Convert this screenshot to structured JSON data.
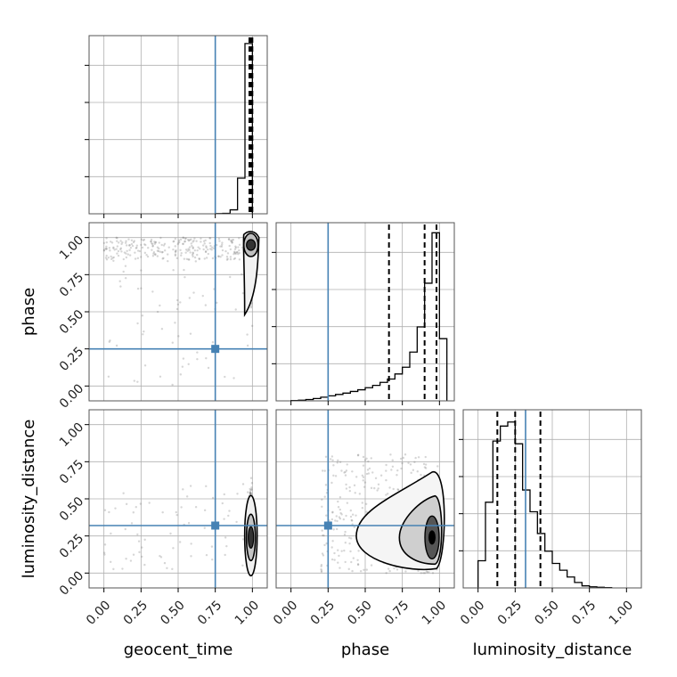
{
  "chart_data": {
    "type": "corner",
    "colors": {
      "truth": "#4682b4",
      "contour": "#000000",
      "points": "#6b6b6b",
      "grid": "#b0b0b0"
    },
    "parameters": [
      "geocent_time",
      "phase",
      "luminosity_distance"
    ],
    "axis_labels": {
      "x": [
        "geocent_time",
        "phase",
        "luminosity_distance"
      ],
      "y": [
        "phase",
        "luminosity_distance"
      ]
    },
    "range": [
      -0.1,
      1.1
    ],
    "ticks": [
      0.0,
      0.25,
      0.5,
      0.75,
      1.0
    ],
    "tick_labels": [
      "0.00",
      "0.25",
      "0.50",
      "0.75",
      "1.00"
    ],
    "truths": [
      0.75,
      0.25,
      0.32
    ],
    "grid": true,
    "histograms": [
      {
        "parameter": "geocent_time",
        "bin_edges": [
          0.75,
          0.8,
          0.85,
          0.9,
          0.95,
          1.0
        ],
        "counts": [
          1,
          2,
          20,
          180,
          860
        ],
        "ymax": 900,
        "quantiles": [
          0.98,
          0.99,
          1.0
        ]
      },
      {
        "parameter": "phase",
        "bin_edges": [
          0.0,
          0.05,
          0.1,
          0.15,
          0.2,
          0.25,
          0.3,
          0.35,
          0.4,
          0.45,
          0.5,
          0.55,
          0.6,
          0.65,
          0.7,
          0.75,
          0.8,
          0.85,
          0.9,
          0.95,
          1.0,
          1.05
        ],
        "counts": [
          2,
          4,
          8,
          14,
          22,
          30,
          38,
          46,
          56,
          66,
          78,
          92,
          110,
          130,
          160,
          200,
          290,
          440,
          700,
          1000,
          370
        ],
        "ymax": 1060,
        "quantiles": [
          0.66,
          0.9,
          0.98
        ]
      },
      {
        "parameter": "luminosity_distance",
        "bin_edges": [
          0.0,
          0.05,
          0.1,
          0.15,
          0.2,
          0.25,
          0.3,
          0.35,
          0.4,
          0.45,
          0.5,
          0.55,
          0.6,
          0.65,
          0.7,
          0.75,
          0.8,
          0.85,
          0.9
        ],
        "counts": [
          200,
          630,
          1080,
          1190,
          1220,
          1060,
          720,
          560,
          400,
          270,
          180,
          130,
          80,
          40,
          15,
          8,
          5,
          2
        ],
        "ymax": 1310,
        "quantiles": [
          0.13,
          0.25,
          0.42
        ]
      }
    ],
    "panels_2d": [
      {
        "x": "geocent_time",
        "y": "phase",
        "density_center": [
          0.99,
          0.95
        ]
      },
      {
        "x": "geocent_time",
        "y": "luminosity_distance",
        "density_center": [
          0.99,
          0.24
        ]
      },
      {
        "x": "phase",
        "y": "luminosity_distance",
        "density_center": [
          0.95,
          0.24
        ]
      }
    ]
  }
}
